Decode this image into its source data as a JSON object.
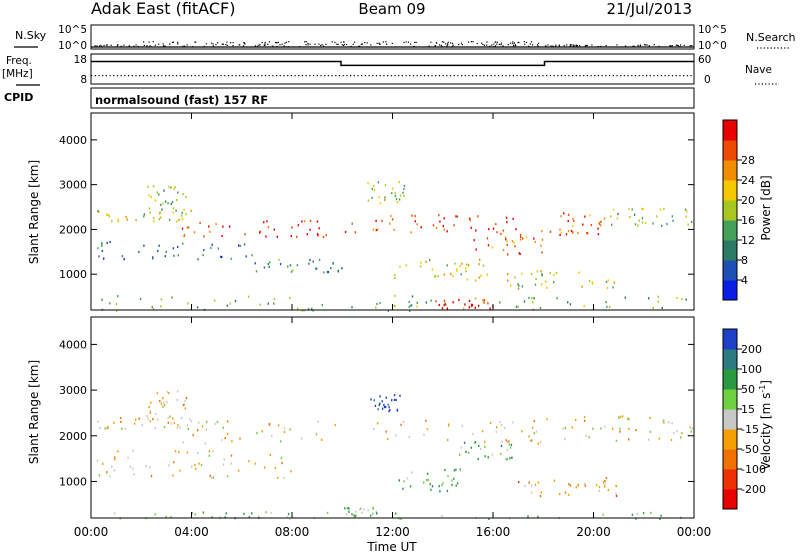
{
  "header": {
    "station": "Adak East (fitACF)",
    "beam": "Beam 09",
    "date": "21/Jul/2013"
  },
  "chart_data": [
    {
      "type": "line",
      "panel": "nsky-nsearch",
      "left_label": "N.Sky",
      "right_label": "N.Search",
      "left_ticks": [
        "10^5",
        "10^0"
      ],
      "right_ticks": [
        "10^5",
        "10^0"
      ],
      "series": [
        {
          "name": "N.Sky",
          "style": "solid-dots"
        },
        {
          "name": "N.Search",
          "style": "dotted"
        }
      ]
    },
    {
      "type": "line",
      "panel": "frequency-nave",
      "left_label": "Freq.",
      "left_unit": "[MHz]",
      "right_label": "Nave",
      "ylim_left": [
        8,
        18
      ],
      "ylim_right": [
        0,
        60
      ],
      "left_ticks": [
        "18",
        "8"
      ],
      "right_ticks": [
        "60",
        "0"
      ],
      "series": [
        {
          "name": "Freq.",
          "style": "solid",
          "x": [
            0,
            9.95,
            9.95,
            18.05,
            18.05,
            24
          ],
          "y": [
            15.5,
            15.5,
            14.2,
            14.2,
            15.5,
            15.5
          ]
        },
        {
          "name": "Nave",
          "style": "dotted",
          "x": [
            0,
            24
          ],
          "y": [
            10.8,
            10.8
          ]
        }
      ]
    },
    {
      "type": "table",
      "panel": "cpid",
      "label": "CPID",
      "value": "normalsound (fast) 157 RF"
    },
    {
      "type": "heatmap",
      "panel": "power",
      "ylabel": "Slant Range [km]",
      "yticks": [
        "1000",
        "2000",
        "3000",
        "4000"
      ],
      "ylim": [
        200,
        4600
      ],
      "colorbar": {
        "label": "Power [dB]",
        "ticks": [
          "4",
          "8",
          "12",
          "16",
          "20",
          "24",
          "28"
        ],
        "colors": [
          "#0a1ee6",
          "#1e50b4",
          "#2a7a66",
          "#45a05a",
          "#a8c820",
          "#f5c800",
          "#f28c00",
          "#ec4a00",
          "#e80000"
        ]
      },
      "bands": [
        {
          "t0": 0.2,
          "t1": 4.0,
          "r0": 2150,
          "r1": 2450,
          "level": 0.55
        },
        {
          "t0": 2.2,
          "t1": 3.8,
          "r0": 2300,
          "r1": 3000,
          "level": 0.45
        },
        {
          "t0": 3.6,
          "t1": 10.0,
          "r0": 1850,
          "r1": 2250,
          "level": 0.9
        },
        {
          "t0": 10.0,
          "t1": 16.8,
          "r0": 1950,
          "r1": 2350,
          "level": 0.9
        },
        {
          "t0": 15.2,
          "t1": 18.1,
          "r0": 1450,
          "r1": 2050,
          "level": 0.8
        },
        {
          "t0": 18.1,
          "t1": 20.5,
          "r0": 1900,
          "r1": 2400,
          "level": 0.8
        },
        {
          "t0": 20.5,
          "t1": 24.0,
          "r0": 2100,
          "r1": 2500,
          "level": 0.5
        },
        {
          "t0": 0.2,
          "t1": 6.5,
          "r0": 1350,
          "r1": 1750,
          "level": 0.25
        },
        {
          "t0": 6.5,
          "t1": 10.0,
          "r0": 1050,
          "r1": 1350,
          "level": 0.3
        },
        {
          "t0": 12.0,
          "t1": 15.8,
          "r0": 850,
          "r1": 1350,
          "level": 0.6
        },
        {
          "t0": 16.5,
          "t1": 21.0,
          "r0": 700,
          "r1": 1100,
          "level": 0.55
        },
        {
          "t0": 11.0,
          "t1": 12.5,
          "r0": 2600,
          "r1": 3100,
          "level": 0.5
        },
        {
          "t0": 0.0,
          "t1": 24.0,
          "r0": 200,
          "r1": 550,
          "level": 0.4
        },
        {
          "t0": 13.5,
          "t1": 16.0,
          "r0": 250,
          "r1": 450,
          "level": 0.95
        }
      ]
    },
    {
      "type": "heatmap",
      "panel": "velocity",
      "ylabel": "Slant Range [km]",
      "yticks": [
        "1000",
        "2000",
        "3000",
        "4000"
      ],
      "ylim": [
        200,
        4600
      ],
      "xlabel": "Time UT",
      "xticks": [
        "00:00",
        "04:00",
        "08:00",
        "12:00",
        "16:00",
        "20:00",
        "00:00"
      ],
      "xlim": [
        0,
        24
      ],
      "colorbar": {
        "label": "Velocity [m s",
        "label_sup": "-1",
        "label_end": "]",
        "ticks": [
          "-200",
          "-100",
          "-50",
          "-15",
          "15",
          "50",
          "100",
          "200"
        ],
        "colors": [
          "#e80000",
          "#ee3000",
          "#f07000",
          "#f4a000",
          "#c8c8c8",
          "#6cd040",
          "#2a9a40",
          "#2a7a80",
          "#1e40c8"
        ]
      },
      "bands": [
        {
          "t0": 0.2,
          "t1": 4.0,
          "r0": 2150,
          "r1": 2450,
          "level": 0.45
        },
        {
          "t0": 2.2,
          "t1": 3.8,
          "r0": 2300,
          "r1": 3000,
          "level": 0.45
        },
        {
          "t0": 3.6,
          "t1": 18.1,
          "r0": 1850,
          "r1": 2350,
          "level": 0.45
        },
        {
          "t0": 18.1,
          "t1": 24.0,
          "r0": 1900,
          "r1": 2450,
          "level": 0.45
        },
        {
          "t0": 11.0,
          "t1": 12.3,
          "r0": 2550,
          "r1": 2950,
          "level": 0.98
        },
        {
          "t0": 12.2,
          "t1": 14.8,
          "r0": 800,
          "r1": 1300,
          "level": 0.65
        },
        {
          "t0": 14.6,
          "t1": 16.8,
          "r0": 1500,
          "r1": 1900,
          "level": 0.65
        },
        {
          "t0": 16.8,
          "t1": 21.0,
          "r0": 700,
          "r1": 1100,
          "level": 0.35
        },
        {
          "t0": 0.2,
          "t1": 8.0,
          "r0": 1100,
          "r1": 1700,
          "level": 0.45
        },
        {
          "t0": 0.0,
          "t1": 24.0,
          "r0": 200,
          "r1": 350,
          "level": 0.62
        },
        {
          "t0": 10.0,
          "t1": 11.4,
          "r0": 250,
          "r1": 450,
          "level": 0.65
        }
      ]
    }
  ]
}
